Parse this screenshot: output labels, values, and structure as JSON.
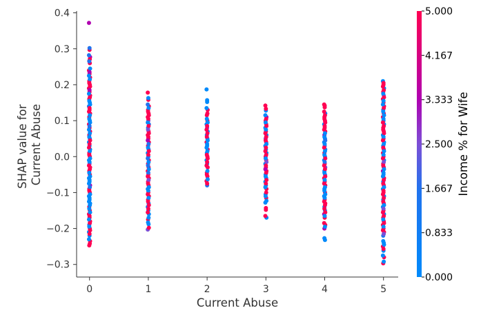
{
  "chart_data": {
    "type": "scatter",
    "xlabel": "Current Abuse",
    "ylabel_lines": [
      "SHAP value for",
      "Current Abuse"
    ],
    "x_ticks": [
      0,
      1,
      2,
      3,
      4,
      5
    ],
    "y_ticks": [
      "0.4",
      "0.3",
      "0.2",
      "0.1",
      "0.0",
      "−0.1",
      "−0.2",
      "−0.3"
    ],
    "y_tick_values": [
      0.4,
      0.3,
      0.2,
      0.1,
      0.0,
      -0.1,
      -0.2,
      -0.3
    ],
    "xlim": [
      -0.22,
      5.25
    ],
    "ylim": [
      -0.335,
      0.405
    ],
    "colorbar": {
      "title": "Income % for Wife",
      "range": [
        0.0,
        5.0
      ],
      "tick_labels": [
        "5.000",
        "4.167",
        "3.333",
        "2.500",
        "1.667",
        "0.833",
        "0.000"
      ],
      "tick_values": [
        5.0,
        4.167,
        3.333,
        2.5,
        1.667,
        0.833,
        0.0
      ],
      "colors": [
        "#008afb",
        "#2173ee",
        "#7c4fd6",
        "#b000b0",
        "#ff0052"
      ]
    },
    "series": [
      {
        "x": 0,
        "color_value": [
          0,
          5
        ],
        "y": [
          0.372,
          0.297,
          0.277,
          0.266,
          0.26,
          0.24,
          0.23,
          0.22,
          0.21,
          0.2,
          0.19,
          0.18,
          0.17,
          0.16,
          0.15,
          0.14,
          0.13,
          0.12,
          0.11,
          0.1,
          0.09,
          0.08,
          0.07,
          0.06,
          0.05,
          0.04,
          0.03,
          0.02,
          0.01,
          0.0,
          -0.01,
          -0.02,
          -0.03,
          -0.04,
          -0.05,
          -0.06,
          -0.07,
          -0.08,
          -0.09,
          -0.1,
          -0.11,
          -0.12,
          -0.13,
          -0.14,
          -0.15,
          -0.16,
          -0.17,
          -0.18,
          -0.19,
          -0.2,
          -0.21,
          -0.22,
          -0.235,
          -0.247
        ]
      },
      {
        "x": 1,
        "color_value": [
          0,
          5
        ],
        "y": [
          0.178,
          0.158,
          0.14,
          0.13,
          0.12,
          0.11,
          0.1,
          0.09,
          0.08,
          0.07,
          0.06,
          0.05,
          0.04,
          0.03,
          0.02,
          0.01,
          0.0,
          -0.01,
          -0.02,
          -0.03,
          -0.04,
          -0.05,
          -0.06,
          -0.07,
          -0.08,
          -0.09,
          -0.1,
          -0.11,
          -0.12,
          -0.13,
          -0.14,
          -0.15,
          -0.16,
          -0.175,
          -0.188,
          -0.203
        ]
      },
      {
        "x": 2,
        "color_value": [
          0,
          5
        ],
        "y": [
          0.187,
          0.152,
          0.13,
          0.115,
          0.1,
          0.09,
          0.08,
          0.07,
          0.06,
          0.05,
          0.04,
          0.03,
          0.02,
          0.01,
          0.0,
          -0.01,
          -0.02,
          -0.03,
          -0.045,
          -0.055,
          -0.068,
          -0.08
        ]
      },
      {
        "x": 3,
        "color_value": [
          0,
          5
        ],
        "y": [
          0.142,
          0.128,
          0.11,
          0.1,
          0.09,
          0.08,
          0.07,
          0.06,
          0.05,
          0.04,
          0.03,
          0.02,
          0.01,
          0.0,
          -0.01,
          -0.02,
          -0.03,
          -0.04,
          -0.05,
          -0.06,
          -0.07,
          -0.08,
          -0.09,
          -0.105,
          -0.115,
          -0.128,
          -0.148,
          -0.17
        ]
      },
      {
        "x": 4,
        "color_value": [
          0,
          5
        ],
        "y": [
          0.145,
          0.137,
          0.12,
          0.11,
          0.1,
          0.09,
          0.08,
          0.07,
          0.06,
          0.05,
          0.04,
          0.03,
          0.02,
          0.01,
          0.0,
          -0.01,
          -0.02,
          -0.03,
          -0.04,
          -0.05,
          -0.06,
          -0.07,
          -0.08,
          -0.09,
          -0.1,
          -0.11,
          -0.12,
          -0.13,
          -0.14,
          -0.15,
          -0.16,
          -0.17,
          -0.19,
          -0.2,
          -0.232
        ]
      },
      {
        "x": 5,
        "color_value": [
          0,
          5
        ],
        "y": [
          0.21,
          0.2,
          0.19,
          0.18,
          0.17,
          0.16,
          0.15,
          0.14,
          0.13,
          0.12,
          0.11,
          0.1,
          0.09,
          0.08,
          0.07,
          0.06,
          0.05,
          0.04,
          0.03,
          0.02,
          0.01,
          0.0,
          -0.01,
          -0.02,
          -0.03,
          -0.04,
          -0.05,
          -0.06,
          -0.07,
          -0.08,
          -0.09,
          -0.1,
          -0.11,
          -0.12,
          -0.13,
          -0.14,
          -0.15,
          -0.16,
          -0.17,
          -0.18,
          -0.19,
          -0.2,
          -0.21,
          -0.22,
          -0.24,
          -0.25,
          -0.262,
          -0.28,
          -0.297
        ]
      }
    ]
  }
}
